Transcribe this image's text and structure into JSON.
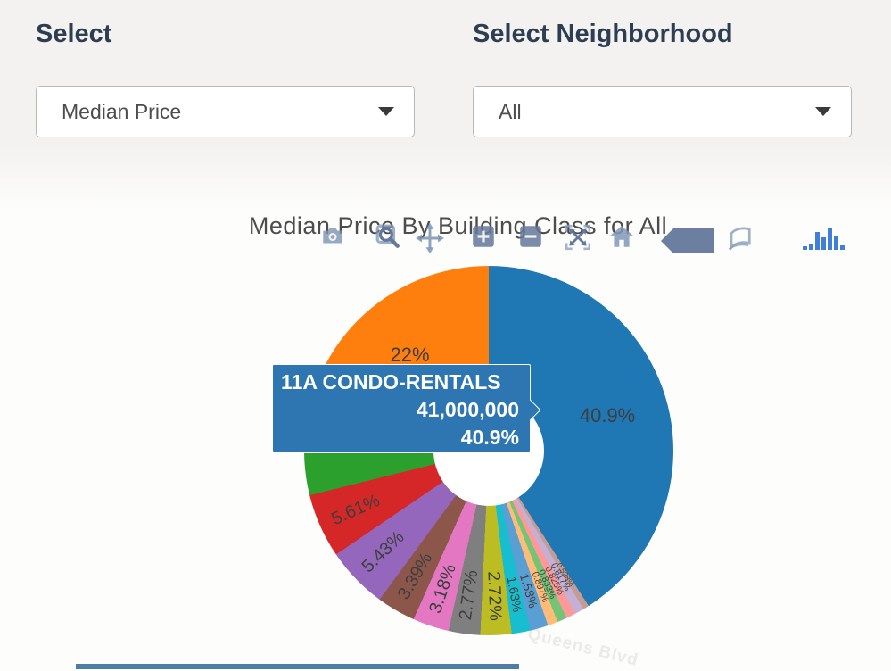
{
  "filters": {
    "metric": {
      "label": "Select",
      "value": "Median Price"
    },
    "neighborhood": {
      "label": "Select Neighborhood",
      "value": "All"
    }
  },
  "chart": {
    "title": "Median Price By Building Class for All",
    "modebar_buttons": [
      "camera-icon",
      "zoom-box-icon",
      "pan-icon",
      "zoom-in-icon",
      "zoom-out-icon",
      "autoscale-icon",
      "home-icon",
      "plotly-logo-icon",
      "notebook-icon",
      "bar-chart-icon"
    ],
    "modebar_color": "#7d93b2",
    "bar_chart_icon_color": "#3f7fd9"
  },
  "tooltip": {
    "title": "11A CONDO-RENTALS",
    "value": "41,000,000",
    "percent": "40.9%",
    "bg": "#2e76b2"
  },
  "background": {
    "map_label": "Queens Blvd"
  },
  "chart_data": {
    "type": "pie",
    "title": "Median Price By Building Class for All",
    "hole": 0.3,
    "layout_note_rotation": "largest slice drawn clockwise from 12 o'clock; remaining slices counterclockwise from 12 o'clock in descending order",
    "slices": [
      {
        "label": "11A CONDO-RENTALS",
        "pct": 40.9,
        "pct_label": "40.9%",
        "color": "#1f77b4",
        "hovered": true,
        "label_visible": true
      },
      {
        "pct": 22.0,
        "pct_label": "22%",
        "color": "#ff7f0e",
        "label_visible": true
      },
      {
        "pct": 6.89,
        "pct_label": "",
        "color": "#2ca02c",
        "label_visible": false
      },
      {
        "pct": 5.61,
        "pct_label": "5.61%",
        "color": "#d62728",
        "label_visible": true
      },
      {
        "pct": 5.43,
        "pct_label": "5.43%",
        "color": "#9467bd",
        "label_visible": true
      },
      {
        "pct": 3.39,
        "pct_label": "3.39%",
        "color": "#8c564b",
        "label_visible": true
      },
      {
        "pct": 3.18,
        "pct_label": "3.18%",
        "color": "#e377c2",
        "label_visible": true
      },
      {
        "pct": 2.77,
        "pct_label": "2.77%",
        "color": "#7f7f7f",
        "label_visible": true
      },
      {
        "pct": 2.72,
        "pct_label": "2.72%",
        "color": "#bcbd22",
        "label_visible": true
      },
      {
        "pct": 1.63,
        "pct_label": "1.63%",
        "color": "#17becf",
        "label_visible": true
      },
      {
        "pct": 1.58,
        "pct_label": "1.58%",
        "color": "#5a9fd4",
        "label_visible": true
      },
      {
        "pct": 0.897,
        "pct_label": "0.897%",
        "color": "#ffbb78",
        "label_visible": true
      },
      {
        "pct": 0.833,
        "pct_label": "0.833%",
        "color": "#74c476",
        "label_visible": true
      },
      {
        "pct": 0.825,
        "pct_label": "0.825%",
        "color": "#ff9896",
        "label_visible": true
      },
      {
        "pct": 0.817,
        "pct_label": "0.817%",
        "color": "#c5b0d5",
        "label_visible": true
      },
      {
        "pct": 0.528,
        "pct_label": "0.528%",
        "color": "#c49c94",
        "label_visible": true
      }
    ]
  }
}
